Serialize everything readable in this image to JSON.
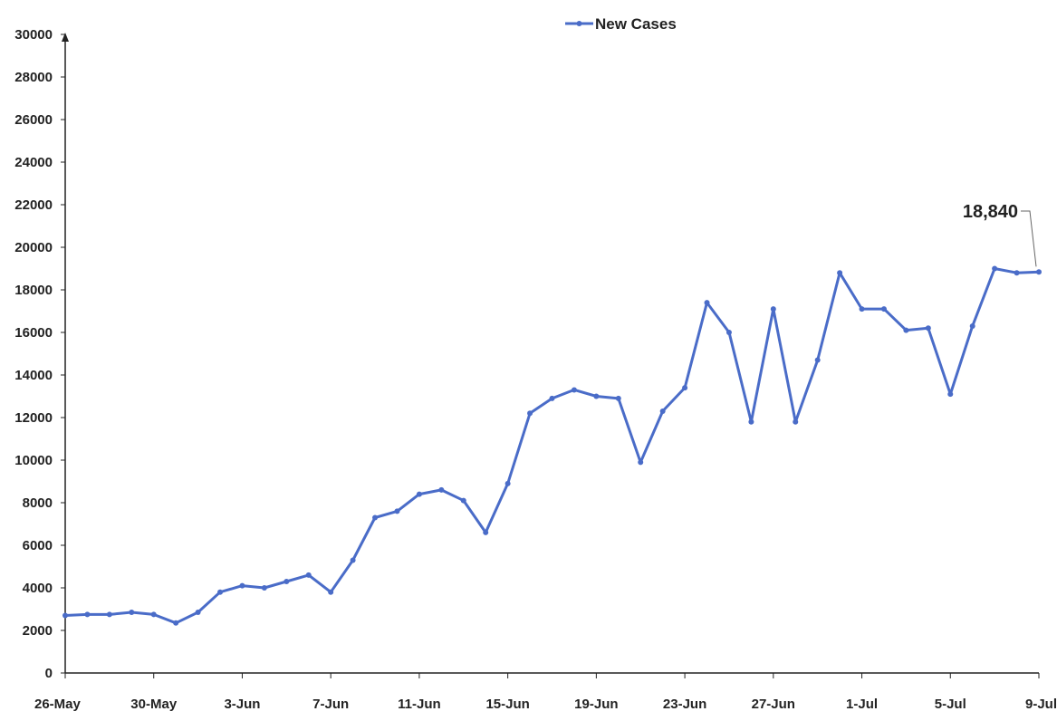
{
  "chart_data": {
    "type": "line",
    "title": "",
    "xlabel": "",
    "ylabel": "",
    "ylim": [
      0,
      30000
    ],
    "y_ticks": [
      0,
      2000,
      4000,
      6000,
      8000,
      10000,
      12000,
      14000,
      16000,
      18000,
      20000,
      22000,
      24000,
      26000,
      28000,
      30000
    ],
    "x_tick_labels": [
      "26-May",
      "30-May",
      "3-Jun",
      "7-Jun",
      "11-Jun",
      "15-Jun",
      "19-Jun",
      "23-Jun",
      "27-Jun",
      "1-Jul",
      "5-Jul",
      "9-Jul"
    ],
    "x": [
      "26-May",
      "27-May",
      "28-May",
      "29-May",
      "30-May",
      "31-May",
      "1-Jun",
      "2-Jun",
      "3-Jun",
      "4-Jun",
      "5-Jun",
      "6-Jun",
      "7-Jun",
      "8-Jun",
      "9-Jun",
      "10-Jun",
      "11-Jun",
      "12-Jun",
      "13-Jun",
      "14-Jun",
      "15-Jun",
      "16-Jun",
      "17-Jun",
      "18-Jun",
      "19-Jun",
      "20-Jun",
      "21-Jun",
      "22-Jun",
      "23-Jun",
      "24-Jun",
      "25-Jun",
      "26-Jun",
      "27-Jun",
      "28-Jun",
      "29-Jun",
      "30-Jun",
      "1-Jul",
      "2-Jul",
      "3-Jul",
      "4-Jul",
      "5-Jul",
      "6-Jul",
      "7-Jul",
      "8-Jul",
      "9-Jul"
    ],
    "series": [
      {
        "name": "New Cases",
        "color": "#4a6cc8",
        "values": [
          2700,
          2750,
          2750,
          2850,
          2750,
          2350,
          2850,
          3800,
          4100,
          4000,
          4300,
          4600,
          3800,
          5300,
          7300,
          7600,
          8400,
          8600,
          8100,
          6600,
          8900,
          12200,
          12900,
          13300,
          13000,
          12900,
          9900,
          12300,
          13400,
          17400,
          16000,
          11800,
          17100,
          11800,
          14700,
          18800,
          17100,
          17100,
          16100,
          16200,
          13100,
          16300,
          19000,
          18800,
          18840
        ]
      }
    ],
    "annotations": [
      {
        "text": "18,840",
        "point_index": 44
      }
    ],
    "legend": {
      "placement": "top-center"
    },
    "grid": false
  }
}
